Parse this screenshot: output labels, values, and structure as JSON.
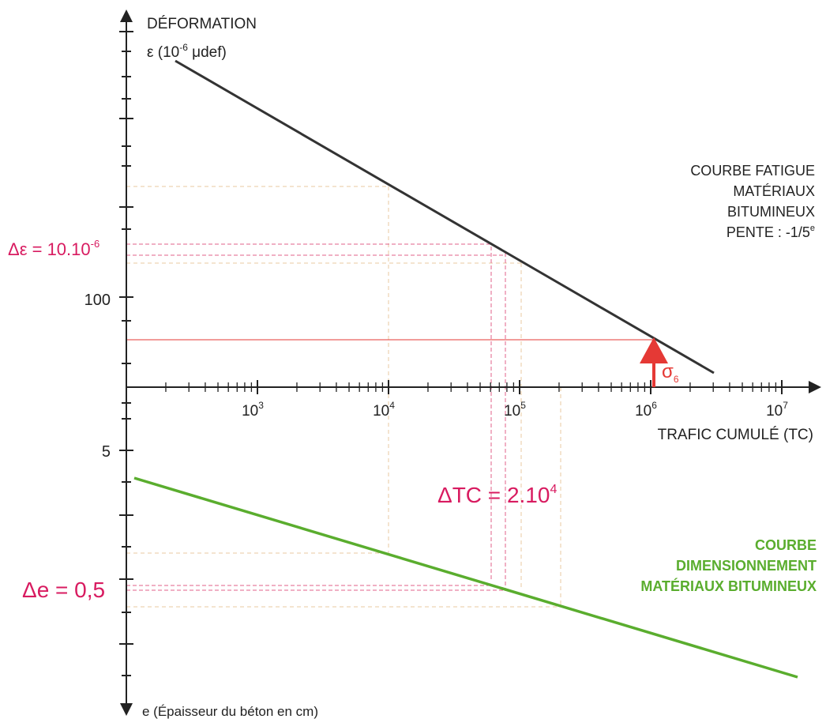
{
  "axes": {
    "y_top_title_1": "DÉFORMATION",
    "y_top_title_2_prefix": "ε (10",
    "y_top_title_2_exp": "-6",
    "y_top_title_2_suffix": " μdef)",
    "y_top_tick_label": "100",
    "x_title": "TRAFIC CUMULÉ (TC)",
    "x_ticks": [
      {
        "base": "10",
        "exp": "3"
      },
      {
        "base": "10",
        "exp": "4"
      },
      {
        "base": "10",
        "exp": "5"
      },
      {
        "base": "10",
        "exp": "6"
      },
      {
        "base": "10",
        "exp": "7"
      }
    ],
    "y_bottom_tick_label": "5",
    "y_bottom_title": "e (Épaisseur du béton en cm)"
  },
  "fatigue_curve": {
    "label_lines": [
      "COURBE FATIGUE",
      "MATÉRIAUX",
      "BITUMINEUX"
    ],
    "slope_prefix": "PENTE : -1/5",
    "slope_sup": "e",
    "color": "#333333"
  },
  "design_curve": {
    "label_lines": [
      "COURBE",
      "DIMENSIONNEMENT",
      "MATÉRIAUX BITUMINEUX"
    ],
    "color": "#5aad2e"
  },
  "annotations": {
    "delta_epsilon_prefix": "Δε = 10.10",
    "delta_epsilon_exp": "-6",
    "delta_tc_prefix": "ΔTC = 2.10",
    "delta_tc_exp": "4",
    "delta_e": "Δe = 0,5",
    "sigma": "σ",
    "sigma_sub": "6",
    "accent_color": "#d81b60",
    "arrow_color": "#e53935"
  }
}
